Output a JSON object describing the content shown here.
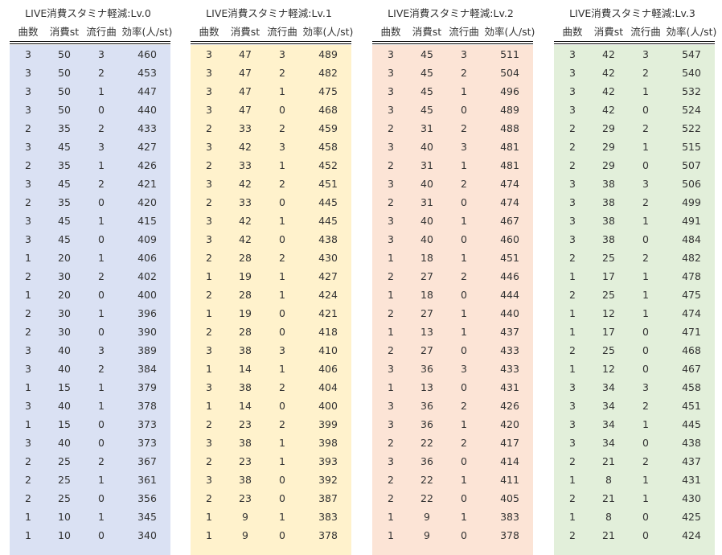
{
  "panels": [
    {
      "title": "LIVE消費スタミナ軽減:Lv.0",
      "bg": "#dae1f3",
      "headers": [
        "曲数",
        "消費st",
        "流行曲",
        "効率(人/st)"
      ],
      "rows": [
        [
          "3",
          "50",
          "3",
          "460"
        ],
        [
          "3",
          "50",
          "2",
          "453"
        ],
        [
          "3",
          "50",
          "1",
          "447"
        ],
        [
          "3",
          "50",
          "0",
          "440"
        ],
        [
          "2",
          "35",
          "2",
          "433"
        ],
        [
          "3",
          "45",
          "3",
          "427"
        ],
        [
          "2",
          "35",
          "1",
          "426"
        ],
        [
          "3",
          "45",
          "2",
          "421"
        ],
        [
          "2",
          "35",
          "0",
          "420"
        ],
        [
          "3",
          "45",
          "1",
          "415"
        ],
        [
          "3",
          "45",
          "0",
          "409"
        ],
        [
          "1",
          "20",
          "1",
          "406"
        ],
        [
          "2",
          "30",
          "2",
          "402"
        ],
        [
          "1",
          "20",
          "0",
          "400"
        ],
        [
          "2",
          "30",
          "1",
          "396"
        ],
        [
          "2",
          "30",
          "0",
          "390"
        ],
        [
          "3",
          "40",
          "3",
          "389"
        ],
        [
          "3",
          "40",
          "2",
          "384"
        ],
        [
          "1",
          "15",
          "1",
          "379"
        ],
        [
          "3",
          "40",
          "1",
          "378"
        ],
        [
          "1",
          "15",
          "0",
          "373"
        ],
        [
          "3",
          "40",
          "0",
          "373"
        ],
        [
          "2",
          "25",
          "2",
          "367"
        ],
        [
          "2",
          "25",
          "1",
          "361"
        ],
        [
          "2",
          "25",
          "0",
          "356"
        ],
        [
          "1",
          "10",
          "1",
          "345"
        ],
        [
          "1",
          "10",
          "0",
          "340"
        ]
      ]
    },
    {
      "title": "LIVE消費スタミナ軽減:Lv.1",
      "bg": "#fff2cc",
      "headers": [
        "曲数",
        "消費st",
        "流行曲",
        "効率(人/st)"
      ],
      "rows": [
        [
          "3",
          "47",
          "3",
          "489"
        ],
        [
          "3",
          "47",
          "2",
          "482"
        ],
        [
          "3",
          "47",
          "1",
          "475"
        ],
        [
          "3",
          "47",
          "0",
          "468"
        ],
        [
          "2",
          "33",
          "2",
          "459"
        ],
        [
          "3",
          "42",
          "3",
          "458"
        ],
        [
          "2",
          "33",
          "1",
          "452"
        ],
        [
          "3",
          "42",
          "2",
          "451"
        ],
        [
          "2",
          "33",
          "0",
          "445"
        ],
        [
          "3",
          "42",
          "1",
          "445"
        ],
        [
          "3",
          "42",
          "0",
          "438"
        ],
        [
          "2",
          "28",
          "2",
          "430"
        ],
        [
          "1",
          "19",
          "1",
          "427"
        ],
        [
          "2",
          "28",
          "1",
          "424"
        ],
        [
          "1",
          "19",
          "0",
          "421"
        ],
        [
          "2",
          "28",
          "0",
          "418"
        ],
        [
          "3",
          "38",
          "3",
          "410"
        ],
        [
          "1",
          "14",
          "1",
          "406"
        ],
        [
          "3",
          "38",
          "2",
          "404"
        ],
        [
          "1",
          "14",
          "0",
          "400"
        ],
        [
          "2",
          "23",
          "2",
          "399"
        ],
        [
          "3",
          "38",
          "1",
          "398"
        ],
        [
          "2",
          "23",
          "1",
          "393"
        ],
        [
          "3",
          "38",
          "0",
          "392"
        ],
        [
          "2",
          "23",
          "0",
          "387"
        ],
        [
          "1",
          "9",
          "1",
          "383"
        ],
        [
          "1",
          "9",
          "0",
          "378"
        ]
      ]
    },
    {
      "title": "LIVE消費スタミナ軽減:Lv.2",
      "bg": "#fce4d6",
      "headers": [
        "曲数",
        "消費st",
        "流行曲",
        "効率(人/st)"
      ],
      "rows": [
        [
          "3",
          "45",
          "3",
          "511"
        ],
        [
          "3",
          "45",
          "2",
          "504"
        ],
        [
          "3",
          "45",
          "1",
          "496"
        ],
        [
          "3",
          "45",
          "0",
          "489"
        ],
        [
          "2",
          "31",
          "2",
          "488"
        ],
        [
          "3",
          "40",
          "3",
          "481"
        ],
        [
          "2",
          "31",
          "1",
          "481"
        ],
        [
          "3",
          "40",
          "2",
          "474"
        ],
        [
          "2",
          "31",
          "0",
          "474"
        ],
        [
          "3",
          "40",
          "1",
          "467"
        ],
        [
          "3",
          "40",
          "0",
          "460"
        ],
        [
          "1",
          "18",
          "1",
          "451"
        ],
        [
          "2",
          "27",
          "2",
          "446"
        ],
        [
          "1",
          "18",
          "0",
          "444"
        ],
        [
          "2",
          "27",
          "1",
          "440"
        ],
        [
          "1",
          "13",
          "1",
          "437"
        ],
        [
          "2",
          "27",
          "0",
          "433"
        ],
        [
          "3",
          "36",
          "3",
          "433"
        ],
        [
          "1",
          "13",
          "0",
          "431"
        ],
        [
          "3",
          "36",
          "2",
          "426"
        ],
        [
          "3",
          "36",
          "1",
          "420"
        ],
        [
          "2",
          "22",
          "2",
          "417"
        ],
        [
          "3",
          "36",
          "0",
          "414"
        ],
        [
          "2",
          "22",
          "1",
          "411"
        ],
        [
          "2",
          "22",
          "0",
          "405"
        ],
        [
          "1",
          "9",
          "1",
          "383"
        ],
        [
          "1",
          "9",
          "0",
          "378"
        ]
      ]
    },
    {
      "title": "LIVE消費スタミナ軽減:Lv.3",
      "bg": "#e2efda",
      "headers": [
        "曲数",
        "消費st",
        "流行曲",
        "効率(人/st)"
      ],
      "rows": [
        [
          "3",
          "42",
          "3",
          "547"
        ],
        [
          "3",
          "42",
          "2",
          "540"
        ],
        [
          "3",
          "42",
          "1",
          "532"
        ],
        [
          "3",
          "42",
          "0",
          "524"
        ],
        [
          "2",
          "29",
          "2",
          "522"
        ],
        [
          "2",
          "29",
          "1",
          "515"
        ],
        [
          "2",
          "29",
          "0",
          "507"
        ],
        [
          "3",
          "38",
          "3",
          "506"
        ],
        [
          "3",
          "38",
          "2",
          "499"
        ],
        [
          "3",
          "38",
          "1",
          "491"
        ],
        [
          "3",
          "38",
          "0",
          "484"
        ],
        [
          "2",
          "25",
          "2",
          "482"
        ],
        [
          "1",
          "17",
          "1",
          "478"
        ],
        [
          "2",
          "25",
          "1",
          "475"
        ],
        [
          "1",
          "12",
          "1",
          "474"
        ],
        [
          "1",
          "17",
          "0",
          "471"
        ],
        [
          "2",
          "25",
          "0",
          "468"
        ],
        [
          "1",
          "12",
          "0",
          "467"
        ],
        [
          "3",
          "34",
          "3",
          "458"
        ],
        [
          "3",
          "34",
          "2",
          "451"
        ],
        [
          "3",
          "34",
          "1",
          "445"
        ],
        [
          "3",
          "34",
          "0",
          "438"
        ],
        [
          "2",
          "21",
          "2",
          "437"
        ],
        [
          "1",
          "8",
          "1",
          "431"
        ],
        [
          "2",
          "21",
          "1",
          "430"
        ],
        [
          "1",
          "8",
          "0",
          "425"
        ],
        [
          "2",
          "21",
          "0",
          "424"
        ]
      ]
    }
  ]
}
